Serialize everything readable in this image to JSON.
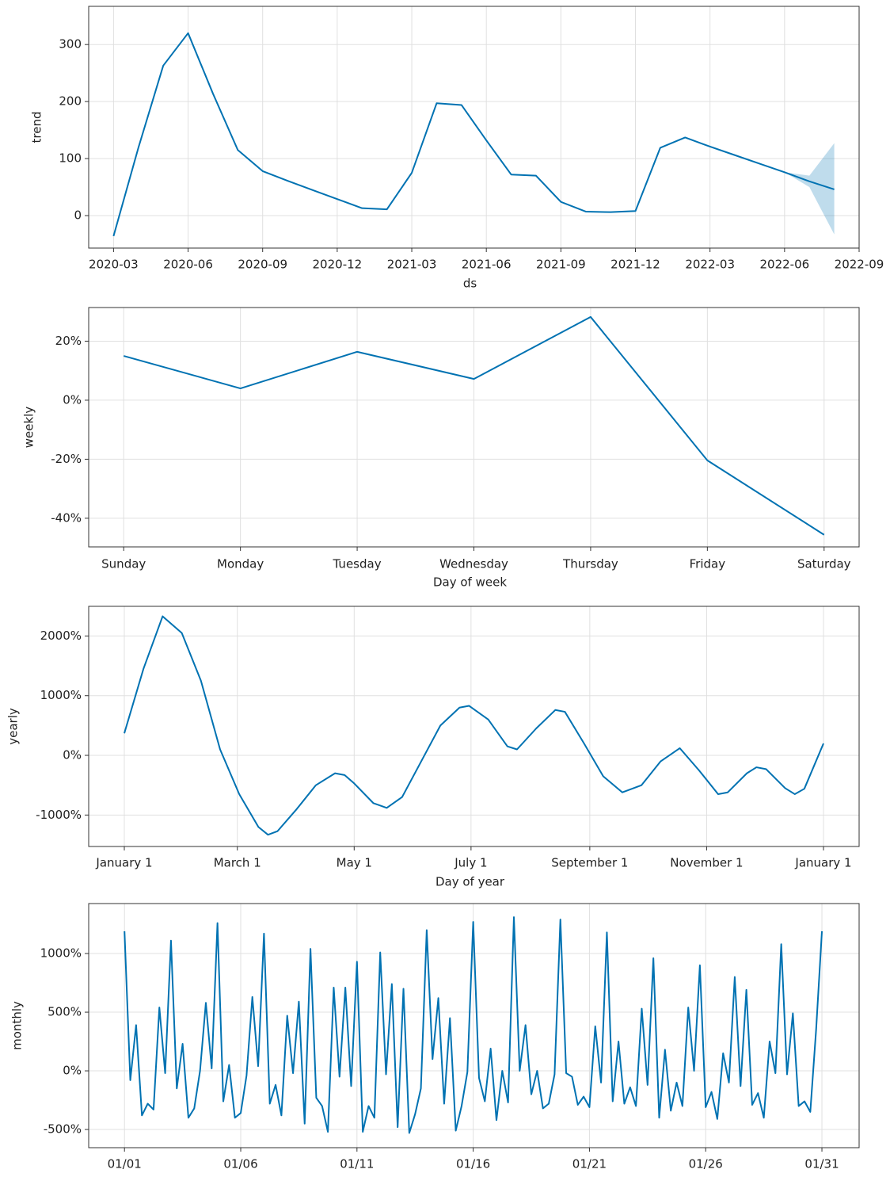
{
  "chart_data": [
    {
      "type": "line",
      "xlabel": "ds",
      "ylabel": "trend",
      "color": "#0072b2",
      "grid": true,
      "x": [
        "2020-03",
        "2020-04",
        "2020-05",
        "2020-06",
        "2020-07",
        "2020-08",
        "2020-09",
        "2020-10",
        "2020-11",
        "2020-12",
        "2021-01",
        "2021-02",
        "2021-03",
        "2021-04",
        "2021-05",
        "2021-06",
        "2021-07",
        "2021-08",
        "2021-09",
        "2021-10",
        "2021-11",
        "2021-12",
        "2022-01",
        "2022-02",
        "2022-03",
        "2022-04",
        "2022-05",
        "2022-06",
        "2022-07",
        "2022-08"
      ],
      "values": [
        -36,
        119,
        263,
        320,
        214,
        115,
        78,
        61,
        45,
        29,
        13,
        11,
        75,
        197,
        194,
        132,
        72,
        70,
        24,
        7,
        6,
        8,
        119,
        137,
        121,
        106,
        91,
        76,
        60,
        46
      ],
      "band": {
        "x": [
          "2022-06",
          "2022-07",
          "2022-08"
        ],
        "lower": [
          76,
          50,
          -33
        ],
        "upper": [
          76,
          70,
          127
        ],
        "color": "#0072b2"
      },
      "xlim": [
        "2020-02",
        "2022-09"
      ],
      "xticks": [
        "2020-03",
        "2020-06",
        "2020-09",
        "2020-12",
        "2021-03",
        "2021-06",
        "2021-09",
        "2021-12",
        "2022-03",
        "2022-06",
        "2022-09"
      ],
      "ylim": [
        -57,
        367
      ],
      "yticks": [
        0,
        100,
        200,
        300
      ]
    },
    {
      "type": "line",
      "xlabel": "Day of week",
      "ylabel": "weekly",
      "color": "#0072b2",
      "grid": true,
      "categories": [
        "Sunday",
        "Monday",
        "Tuesday",
        "Wednesday",
        "Thursday",
        "Friday",
        "Saturday"
      ],
      "values": [
        15.0,
        4.0,
        16.4,
        7.2,
        28.2,
        -20.4,
        -45.6
      ],
      "ylim": [
        -49.7,
        31.4
      ],
      "yticks": [
        {
          "value": -40,
          "label": "-40%"
        },
        {
          "value": -20,
          "label": "-20%"
        },
        {
          "value": 0,
          "label": "0%"
        },
        {
          "value": 20,
          "label": "20%"
        }
      ]
    },
    {
      "type": "line",
      "xlabel": "Day of year",
      "ylabel": "yearly",
      "color": "#0072b2",
      "grid": true,
      "x": [
        0,
        10,
        20,
        30,
        40,
        50,
        60,
        70,
        75,
        80,
        90,
        100,
        110,
        115,
        120,
        130,
        137,
        145,
        155,
        165,
        175,
        180,
        190,
        200,
        205,
        215,
        225,
        230,
        240,
        250,
        260,
        270,
        280,
        290,
        300,
        310,
        315,
        325,
        330,
        335,
        345,
        350,
        355,
        365
      ],
      "values": [
        370,
        1450,
        2330,
        2050,
        1250,
        100,
        -650,
        -1200,
        -1330,
        -1270,
        -900,
        -500,
        -300,
        -330,
        -470,
        -800,
        -880,
        -700,
        -100,
        500,
        800,
        830,
        600,
        150,
        100,
        450,
        760,
        730,
        200,
        -350,
        -620,
        -500,
        -100,
        120,
        -250,
        -650,
        -620,
        -300,
        -200,
        -230,
        -550,
        -650,
        -560,
        200
      ],
      "xlim": [
        -18.6,
        383.6
      ],
      "xticks": [
        {
          "value": 0,
          "label": "January 1"
        },
        {
          "value": 59,
          "label": "March 1"
        },
        {
          "value": 120,
          "label": "May 1"
        },
        {
          "value": 181,
          "label": "July 1"
        },
        {
          "value": 243,
          "label": "September 1"
        },
        {
          "value": 304,
          "label": "November 1"
        },
        {
          "value": 365,
          "label": "January 1"
        }
      ],
      "ylim": [
        -1527,
        2497
      ],
      "yticks": [
        {
          "value": -1000,
          "label": "-1000%"
        },
        {
          "value": 0,
          "label": "0%"
        },
        {
          "value": 1000,
          "label": "1000%"
        },
        {
          "value": 2000,
          "label": "2000%"
        }
      ]
    },
    {
      "type": "line",
      "ylabel": "monthly",
      "color": "#0072b2",
      "grid": true,
      "x": [
        1,
        1.25,
        1.5,
        1.75,
        2,
        2.25,
        2.5,
        2.75,
        3,
        3.25,
        3.5,
        3.75,
        4,
        4.25,
        4.5,
        4.75,
        5,
        5.25,
        5.5,
        5.75,
        6,
        6.25,
        6.5,
        6.75,
        7,
        7.25,
        7.5,
        7.75,
        8,
        8.25,
        8.5,
        8.75,
        9,
        9.25,
        9.5,
        9.75,
        10,
        10.25,
        10.5,
        10.75,
        11,
        11.25,
        11.5,
        11.75,
        12,
        12.25,
        12.5,
        12.75,
        13,
        13.25,
        13.5,
        13.75,
        14,
        14.25,
        14.5,
        14.75,
        15,
        15.25,
        15.5,
        15.75,
        16,
        16.25,
        16.5,
        16.75,
        17,
        17.25,
        17.5,
        17.75,
        18,
        18.25,
        18.5,
        18.75,
        19,
        19.25,
        19.5,
        19.75,
        20,
        20.25,
        20.5,
        20.75,
        21,
        21.25,
        21.5,
        21.75,
        22,
        22.25,
        22.5,
        22.75,
        23,
        23.25,
        23.5,
        23.75,
        24,
        24.25,
        24.5,
        24.75,
        25,
        25.25,
        25.5,
        25.75,
        26,
        26.25,
        26.5,
        26.75,
        27,
        27.25,
        27.5,
        27.75,
        28,
        28.25,
        28.5,
        28.75,
        29,
        29.25,
        29.5,
        29.75,
        30,
        30.25,
        30.5,
        30.75,
        31
      ],
      "values": [
        1190,
        -80,
        390,
        -380,
        -280,
        -330,
        540,
        -20,
        1110,
        -150,
        230,
        -400,
        -320,
        0,
        580,
        20,
        1260,
        -260,
        50,
        -400,
        -360,
        -40,
        630,
        40,
        1170,
        -280,
        -120,
        -380,
        470,
        -20,
        590,
        -450,
        1040,
        -230,
        -300,
        -520,
        710,
        -50,
        710,
        -130,
        930,
        -520,
        -300,
        -400,
        1010,
        -30,
        740,
        -480,
        700,
        -530,
        -370,
        -150,
        1200,
        100,
        620,
        -280,
        450,
        -510,
        -300,
        -10,
        1270,
        -60,
        -260,
        190,
        -420,
        0,
        -270,
        1310,
        0,
        390,
        -200,
        0,
        -320,
        -280,
        -30,
        1290,
        -20,
        -50,
        -290,
        -220,
        -310,
        380,
        -100,
        1180,
        -260,
        250,
        -280,
        -140,
        -300,
        530,
        -120,
        960,
        -400,
        180,
        -340,
        -100,
        -300,
        540,
        0,
        900,
        -310,
        -180,
        -410,
        150,
        -100,
        800,
        -130,
        690,
        -290,
        -190,
        -400,
        250,
        -20,
        1080,
        -30,
        490,
        -300,
        -260,
        -350,
        350,
        1190
      ],
      "xlim": [
        -0.54,
        32.6
      ],
      "xticks": [
        {
          "value": 1,
          "label": "01/01"
        },
        {
          "value": 6,
          "label": "01/06"
        },
        {
          "value": 11,
          "label": "01/11"
        },
        {
          "value": 16,
          "label": "01/16"
        },
        {
          "value": 21,
          "label": "01/21"
        },
        {
          "value": 26,
          "label": "01/26"
        },
        {
          "value": 31,
          "label": "01/31"
        }
      ],
      "ylim": [
        -655,
        1426
      ],
      "yticks": [
        {
          "value": -500,
          "label": "-500%"
        },
        {
          "value": 0,
          "label": "0%"
        },
        {
          "value": 500,
          "label": "500%"
        },
        {
          "value": 1000,
          "label": "1000%"
        }
      ]
    }
  ]
}
